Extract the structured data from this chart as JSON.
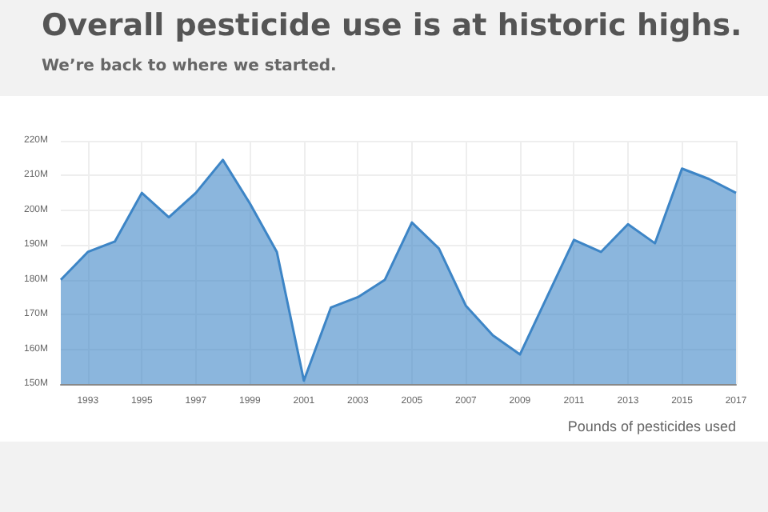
{
  "chart_data": {
    "type": "area",
    "title": "Overall pesticide use is at historic highs.",
    "subtitle": "We’re back to where we started.",
    "xlabel": "Pounds of pesticides used",
    "x": [
      1992,
      1993,
      1994,
      1995,
      1996,
      1997,
      1998,
      1999,
      2000,
      2001,
      2002,
      2003,
      2004,
      2005,
      2006,
      2007,
      2008,
      2009,
      2010,
      2011,
      2012,
      2013,
      2014,
      2015,
      2016,
      2017
    ],
    "series": [
      {
        "color": "#3d85c6",
        "values": [
          180,
          188,
          191,
          205,
          198,
          205,
          214.5,
          202,
          188,
          151,
          172,
          175,
          180,
          196.5,
          189,
          172.5,
          164,
          158.5,
          175,
          191.5,
          188,
          196,
          190.5,
          212,
          209,
          205
        ]
      }
    ],
    "xlim": [
      1992,
      2017
    ],
    "xticks": [
      1993,
      1995,
      1997,
      1999,
      2001,
      2003,
      2005,
      2007,
      2009,
      2011,
      2013,
      2015,
      2017
    ],
    "ylim": [
      150,
      220
    ],
    "yticks": [
      {
        "value": 150,
        "label": "150M"
      },
      {
        "value": 160,
        "label": "160M"
      },
      {
        "value": 170,
        "label": "170M"
      },
      {
        "value": 180,
        "label": "180M"
      },
      {
        "value": 190,
        "label": "190M"
      },
      {
        "value": 200,
        "label": "200M"
      },
      {
        "value": 210,
        "label": "210M"
      },
      {
        "value": 220,
        "label": "220M"
      }
    ],
    "grid": true,
    "marker": "none",
    "line_style": "solid"
  }
}
